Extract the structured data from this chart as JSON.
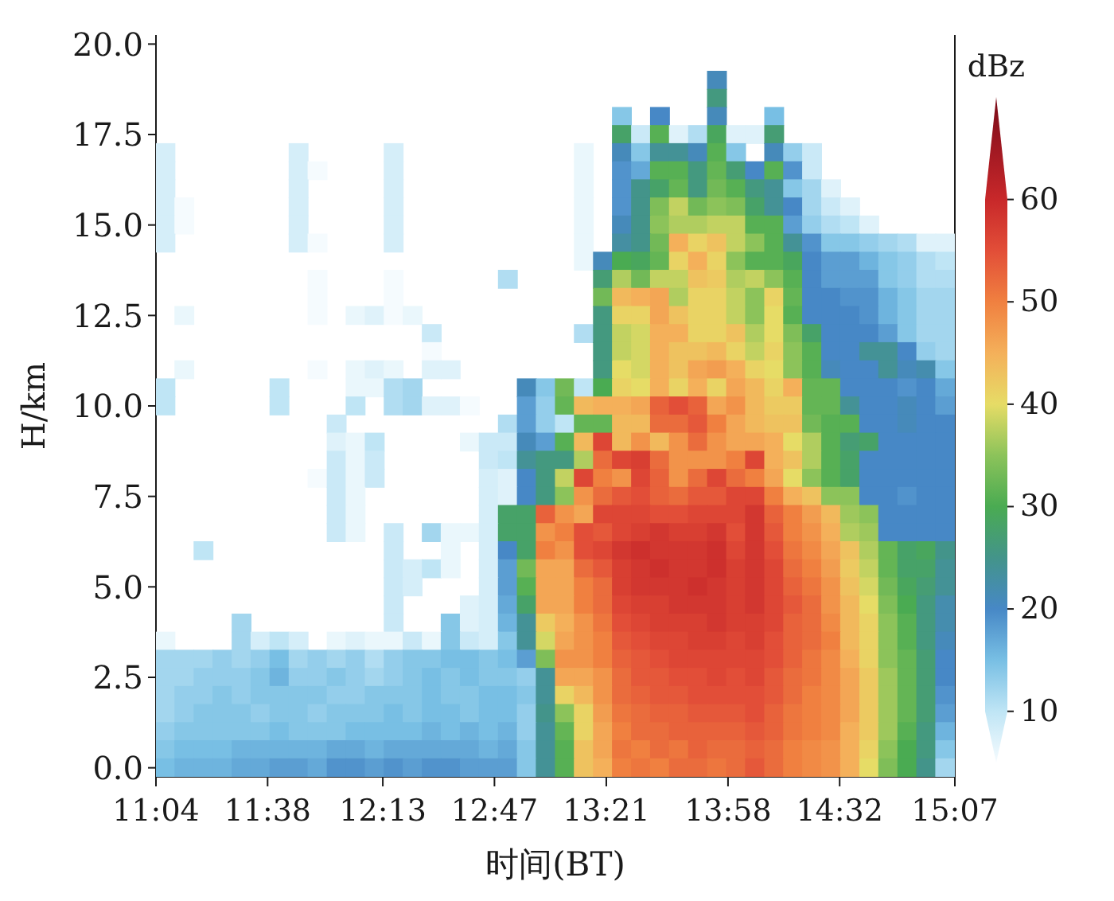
{
  "chart_data": {
    "type": "scatter",
    "marker": "square",
    "xlabel": "时间(BT)",
    "ylabel": "H/km",
    "clabel": "dBz",
    "xlim": [
      11.067,
      15.117
    ],
    "xticks": [
      {
        "value": 11.067,
        "label": "11:04"
      },
      {
        "value": 11.633,
        "label": "11:38"
      },
      {
        "value": 12.217,
        "label": "12:13"
      },
      {
        "value": 12.783,
        "label": "12:47"
      },
      {
        "value": 13.35,
        "label": "13:21"
      },
      {
        "value": 13.967,
        "label": "13:58"
      },
      {
        "value": 14.533,
        "label": "14:32"
      },
      {
        "value": 15.117,
        "label": "15:07"
      }
    ],
    "ylim": [
      -0.25,
      20.25
    ],
    "yticks": [
      {
        "value": 0,
        "label": "0.0"
      },
      2.5,
      {
        "value": 5,
        "label": "5.0"
      },
      7.5,
      {
        "value": 10,
        "label": "10.0"
      },
      12.5,
      {
        "value": 15,
        "label": "15.0"
      },
      17.5,
      {
        "value": 20,
        "label": "20.0"
      }
    ],
    "clim": [
      5,
      70
    ],
    "cticks": [
      10,
      20,
      30,
      40,
      50,
      60
    ],
    "x": [
      13.911,
      13.911,
      13.429,
      13.622,
      13.911,
      14.201,
      13.429,
      13.526,
      13.622,
      13.718,
      13.815,
      13.911,
      14.008,
      14.104,
      14.201,
      11.115,
      11.79,
      12.272,
      13.236,
      13.429,
      13.526,
      13.622,
      13.718,
      13.815,
      13.911,
      14.008,
      14.201,
      14.297,
      14.393,
      11.115,
      11.79,
      11.886,
      12.272,
      13.236,
      13.429,
      13.526,
      13.622,
      13.718,
      13.815,
      13.911,
      14.008,
      14.104,
      14.201,
      14.297,
      14.393,
      11.115,
      11.79,
      12.272,
      13.236,
      13.429,
      13.526,
      13.622,
      13.718,
      13.815,
      13.911,
      14.008,
      14.104,
      14.201,
      14.297,
      14.393,
      14.49,
      11.115,
      11.211,
      11.79,
      12.272,
      13.236,
      13.429,
      13.526,
      13.622,
      13.718,
      13.815,
      13.911,
      14.008,
      14.104,
      14.201,
      14.297,
      14.393,
      14.49,
      14.586,
      11.115,
      11.211,
      11.79,
      12.272,
      13.236,
      13.429,
      13.526,
      13.622,
      13.718,
      13.815,
      13.911,
      14.008,
      14.104,
      14.201,
      14.297,
      14.393,
      14.49,
      14.586,
      14.683,
      11.115,
      11.79,
      11.886,
      12.272,
      13.236,
      13.429,
      13.526,
      13.622,
      13.718,
      13.815,
      13.911,
      14.008,
      14.104,
      14.201,
      14.297,
      14.393,
      14.49,
      14.586,
      14.683,
      14.779,
      14.876,
      14.972,
      15.068,
      13.236,
      13.333,
      13.429,
      13.526,
      13.622,
      13.718,
      13.815,
      13.911,
      14.008,
      14.104,
      14.201,
      14.297,
      14.393,
      14.49,
      14.586,
      14.683,
      14.779,
      14.876,
      14.972,
      15.068,
      11.886,
      12.272,
      12.851,
      13.333,
      13.429,
      13.526,
      13.622,
      13.718,
      13.815,
      13.911,
      14.008,
      14.104,
      14.201,
      14.297,
      14.393,
      14.49,
      14.586,
      14.683,
      14.779,
      14.876,
      14.972,
      15.068,
      11.886,
      12.272,
      13.333,
      13.429,
      13.526,
      13.622,
      13.718,
      13.815,
      13.911,
      14.008,
      14.104,
      14.201,
      14.297,
      14.393,
      14.49,
      14.586,
      14.683,
      14.779,
      14.876,
      14.972,
      15.068,
      11.211,
      11.886,
      12.079,
      12.176,
      12.272,
      12.368,
      13.333,
      13.429,
      13.526,
      13.622,
      13.718,
      13.815,
      13.911,
      14.008,
      14.104,
      14.201,
      14.297,
      14.393,
      14.49,
      14.586,
      14.683,
      14.779,
      14.876,
      14.972,
      15.068,
      12.465,
      13.236,
      13.333,
      13.429,
      13.526,
      13.622,
      13.718,
      13.815,
      13.911,
      14.008,
      14.104,
      14.201,
      14.297,
      14.393,
      14.49,
      14.586,
      14.683,
      14.779,
      14.876,
      14.972,
      15.068,
      12.465,
      13.333,
      13.429,
      13.526,
      13.622,
      13.718,
      13.815,
      13.911,
      14.008,
      14.104,
      14.201,
      14.297,
      14.393,
      14.49,
      14.586,
      14.683,
      14.779,
      14.876,
      14.972,
      15.068,
      11.211,
      11.886,
      12.079,
      12.176,
      12.272,
      12.465,
      12.561,
      13.333,
      13.429,
      13.526,
      13.622,
      13.718,
      13.815,
      13.911,
      14.008,
      14.104,
      14.201,
      14.297,
      14.393,
      14.49,
      14.586,
      14.683,
      14.779,
      14.876,
      14.972,
      15.068,
      11.115,
      11.693,
      12.079,
      12.176,
      12.272,
      12.368,
      12.947,
      13.043,
      13.14,
      13.236,
      13.333,
      13.429,
      13.526,
      13.622,
      13.718,
      13.815,
      13.911,
      14.008,
      14.104,
      14.201,
      14.297,
      14.393,
      14.49,
      14.586,
      14.683,
      14.779,
      14.876,
      14.972,
      15.068,
      11.115,
      11.693,
      12.079,
      12.272,
      12.368,
      12.465,
      12.561,
      12.658,
      12.947,
      13.043,
      13.14,
      13.236,
      13.333,
      13.429,
      13.526,
      13.622,
      13.718,
      13.815,
      13.911,
      14.008,
      14.104,
      14.201,
      14.297,
      14.393,
      14.49,
      14.586,
      14.683,
      14.779,
      14.876,
      14.972,
      15.068,
      11.983,
      12.851,
      12.947,
      13.043,
      13.14,
      13.236,
      13.333,
      13.429,
      13.526,
      13.622,
      13.718,
      13.815,
      13.911,
      14.008,
      14.104,
      14.201,
      14.297,
      14.393,
      14.49,
      14.586,
      14.683,
      14.779,
      14.876,
      14.972,
      15.068,
      11.983,
      12.079,
      12.176,
      12.658,
      12.754,
      12.851,
      12.947,
      13.043,
      13.14,
      13.236,
      13.333,
      13.429,
      13.526,
      13.622,
      13.718,
      13.815,
      13.911,
      14.008,
      14.104,
      14.201,
      14.297,
      14.393,
      14.49,
      14.586,
      14.683,
      14.779,
      14.876,
      14.972,
      15.068,
      11.983,
      12.079,
      12.176,
      12.754,
      12.851,
      12.947,
      13.043,
      13.14,
      13.236,
      13.333,
      13.429,
      13.526,
      13.622,
      13.718,
      13.815,
      13.911,
      14.008,
      14.104,
      14.201,
      14.297,
      14.393,
      14.49,
      14.586,
      14.683,
      14.779,
      14.876,
      14.972,
      15.068,
      11.886,
      11.983,
      12.079,
      12.176,
      12.754,
      12.851,
      12.947,
      13.043,
      13.14,
      13.236,
      13.333,
      13.429,
      13.526,
      13.622,
      13.718,
      13.815,
      13.911,
      14.008,
      14.104,
      14.201,
      14.297,
      14.393,
      14.49,
      14.586,
      14.683,
      14.779,
      14.876,
      14.972,
      15.068,
      11.983,
      12.079,
      12.754,
      12.851,
      12.947,
      13.043,
      13.14,
      13.236,
      13.333,
      13.429,
      13.526,
      13.622,
      13.718,
      13.815,
      13.911,
      14.008,
      14.104,
      14.201,
      14.297,
      14.393,
      14.49,
      14.586,
      14.683,
      14.779,
      14.876,
      14.972,
      15.068,
      11.983,
      12.079,
      12.754,
      12.851,
      12.947,
      13.043,
      13.14,
      13.236,
      13.333,
      13.429,
      13.526,
      13.622,
      13.718,
      13.815,
      13.911,
      14.008,
      14.104,
      14.201,
      14.297,
      14.393,
      14.49,
      14.586,
      14.683,
      14.779,
      14.876,
      14.972,
      15.068,
      11.983,
      12.079,
      12.272,
      12.465,
      12.561,
      12.658,
      12.754,
      12.851,
      12.947,
      13.043,
      13.14,
      13.236,
      13.333,
      13.429,
      13.526,
      13.622,
      13.718,
      13.815,
      13.911,
      14.008,
      14.104,
      14.201,
      14.297,
      14.393,
      14.49,
      14.586,
      14.683,
      14.779,
      14.876,
      14.972,
      15.068,
      11.308,
      12.272,
      12.561,
      12.754,
      12.851,
      12.947,
      13.043,
      13.14,
      13.236,
      13.333,
      13.429,
      13.526,
      13.622,
      13.718,
      13.815,
      13.911,
      14.008,
      14.104,
      14.201,
      14.297,
      14.393,
      14.49,
      14.586,
      14.683,
      14.779,
      14.876,
      14.972,
      15.068,
      12.272,
      12.368,
      12.465,
      12.561,
      12.754,
      12.851,
      12.947,
      13.043,
      13.14,
      13.236,
      13.333,
      13.429,
      13.526,
      13.622,
      13.718,
      13.815,
      13.911,
      14.008,
      14.104,
      14.201,
      14.297,
      14.393,
      14.49,
      14.586,
      14.683,
      14.779,
      14.876,
      14.972,
      15.068,
      12.272,
      12.368,
      12.754,
      12.851,
      12.947,
      13.043,
      13.14,
      13.236,
      13.333,
      13.429,
      13.526,
      13.622,
      13.718,
      13.815,
      13.911,
      14.008,
      14.104,
      14.201,
      14.297,
      14.393,
      14.49,
      14.586,
      14.683,
      14.779,
      14.876,
      14.972,
      15.068,
      12.272,
      12.658,
      12.754,
      12.851,
      12.947,
      13.043,
      13.14,
      13.236,
      13.333,
      13.429,
      13.526,
      13.622,
      13.718,
      13.815,
      13.911,
      14.008,
      14.104,
      14.201,
      14.297,
      14.393,
      14.49,
      14.586,
      14.683,
      14.779,
      14.876,
      14.972,
      15.068,
      11.501,
      12.272,
      12.561,
      12.658,
      12.754,
      12.851,
      12.947,
      13.043,
      13.14,
      13.236,
      13.333,
      13.429,
      13.526,
      13.622,
      13.718,
      13.815,
      13.911,
      14.008,
      14.104,
      14.201,
      14.297,
      14.393,
      14.49,
      14.586,
      14.683,
      14.779,
      14.876,
      14.972,
      15.068,
      11.115,
      11.501,
      11.597,
      11.693,
      11.79,
      11.983,
      12.079,
      12.176,
      12.272,
      12.368,
      12.465,
      12.561,
      12.658,
      12.754,
      12.851,
      12.947,
      13.043,
      13.14,
      13.236,
      13.333,
      13.429,
      13.526,
      13.622,
      13.718,
      13.815,
      13.911,
      14.008,
      14.104,
      14.201,
      14.297,
      14.393,
      14.49,
      14.586,
      14.683,
      14.779,
      14.876,
      14.972,
      15.068,
      11.115,
      11.211,
      11.308,
      11.404,
      11.501,
      11.597,
      11.693,
      11.79,
      11.886,
      11.983,
      12.079,
      12.176,
      12.272,
      12.368,
      12.465,
      12.561,
      12.658,
      12.754,
      12.851,
      12.947,
      13.043,
      13.14,
      13.236,
      13.333,
      13.429,
      13.526,
      13.622,
      13.718,
      13.815,
      13.911,
      14.008,
      14.104,
      14.201,
      14.297,
      14.393,
      14.49,
      14.586,
      14.683,
      14.779,
      14.876,
      14.972,
      15.068,
      11.115,
      11.211,
      11.308,
      11.404,
      11.501,
      11.597,
      11.693,
      11.79,
      11.886,
      11.983,
      12.079,
      12.176,
      12.272,
      12.368,
      12.465,
      12.561,
      12.658,
      12.754,
      12.851,
      12.947,
      13.043,
      13.14,
      13.236,
      13.333,
      13.429,
      13.526,
      13.622,
      13.718,
      13.815,
      13.911,
      14.008,
      14.104,
      14.201,
      14.297,
      14.393,
      14.49,
      14.586,
      14.683,
      14.779,
      14.876,
      14.972,
      15.068,
      11.115,
      11.211,
      11.308,
      11.404,
      11.501,
      11.597,
      11.693,
      11.79,
      11.886,
      11.983,
      12.079,
      12.176,
      12.272,
      12.368,
      12.465,
      12.561,
      12.658,
      12.754,
      12.851,
      12.947,
      13.043,
      13.14,
      13.236,
      13.333,
      13.429,
      13.526,
      13.622,
      13.718,
      13.815,
      13.911,
      14.008,
      14.104,
      14.201,
      14.297,
      14.393,
      14.49,
      14.586,
      14.683,
      14.779,
      14.876,
      14.972,
      15.068,
      11.115,
      11.211,
      11.308,
      11.404,
      11.501,
      11.597,
      11.693,
      11.79,
      11.886,
      11.983,
      12.079,
      12.176,
      12.272,
      12.368,
      12.465,
      12.561,
      12.658,
      12.754,
      12.851,
      12.947,
      13.043,
      13.14,
      13.236,
      13.333,
      13.429,
      13.526,
      13.622,
      13.718,
      13.815,
      13.911,
      14.008,
      14.104,
      14.201,
      14.297,
      14.393,
      14.49,
      14.586,
      14.683,
      14.779,
      14.876,
      14.972,
      15.068,
      11.115,
      11.211,
      11.308,
      11.404,
      11.501,
      11.597,
      11.693,
      11.79,
      11.886,
      11.983,
      12.079,
      12.176,
      12.272,
      12.368,
      12.465,
      12.561,
      12.658,
      12.754,
      12.851,
      12.947,
      13.043,
      13.14,
      13.236,
      13.333,
      13.429,
      13.526,
      13.622,
      13.718,
      13.815,
      13.911,
      14.008,
      14.104,
      14.201,
      14.297,
      14.393,
      14.49,
      14.586,
      14.683,
      14.779,
      14.876,
      14.972,
      15.068,
      11.115,
      11.211,
      11.308,
      11.404,
      11.501,
      11.597,
      11.693,
      11.79,
      11.886,
      11.983,
      12.079,
      12.176,
      12.272,
      12.368,
      12.465,
      12.561,
      12.658,
      12.754,
      12.851,
      12.947,
      13.043,
      13.14,
      13.236,
      13.333,
      13.429,
      13.526,
      13.622,
      13.718,
      13.815,
      13.911,
      14.008,
      14.104,
      14.201,
      14.297,
      14.393,
      14.49,
      14.586,
      14.683,
      14.779,
      14.876,
      14.972,
      15.068,
      11.115,
      11.211,
      11.308,
      11.404,
      11.501,
      11.597,
      11.693,
      11.79,
      11.886,
      11.983,
      12.079,
      12.176,
      12.272,
      12.368,
      12.465,
      12.561,
      12.658,
      12.754,
      12.851,
      12.947,
      13.043,
      13.14,
      13.236,
      13.333,
      13.429,
      13.526,
      13.622,
      13.718,
      13.815,
      13.911,
      14.008,
      14.104,
      14.201,
      14.297,
      14.393,
      14.49,
      14.586,
      14.683,
      14.779,
      14.876,
      14.972,
      15.068
    ],
    "values": [
      19,
      18.5,
      18,
      18,
      18,
      18,
      17.5,
      17.5,
      17.5,
      17.5,
      17.5,
      17.5,
      17.5,
      17.5,
      17.5,
      17,
      17,
      17,
      17,
      17,
      17,
      17,
      17,
      17,
      17,
      17,
      17,
      17,
      17,
      16.5,
      16.5,
      16.5,
      16.5,
      16.5,
      16.5,
      16.5,
      16.5,
      16.5,
      16.5,
      16.5,
      16.5,
      16.5,
      16.5,
      16.5,
      16.5,
      16,
      16,
      16,
      16,
      16,
      16,
      16,
      16,
      16,
      16,
      16,
      16,
      16,
      16,
      16,
      16,
      15.5,
      15.5,
      15.5,
      15.5,
      15.5,
      15.5,
      15.5,
      15.5,
      15.5,
      15.5,
      15.5,
      15.5,
      15.5,
      15.5,
      15.5,
      15.5,
      15.5,
      15.5,
      15,
      15,
      15,
      15,
      15,
      15,
      15,
      15,
      15,
      15,
      15,
      15,
      15,
      15,
      15,
      15,
      15,
      15,
      15,
      14.5,
      14.5,
      14.5,
      14.5,
      14.5,
      14.5,
      14.5,
      14.5,
      14.5,
      14.5,
      14.5,
      14.5,
      14.5,
      14.5,
      14.5,
      14.5,
      14.5,
      14.5,
      14.5,
      14.5,
      14.5,
      14.5,
      14.5,
      14,
      14,
      14,
      14,
      14,
      14,
      14,
      14,
      14,
      14,
      14,
      14,
      14,
      14,
      14,
      14,
      14,
      14,
      14,
      14,
      13.5,
      13.5,
      13.5,
      13.5,
      13.5,
      13.5,
      13.5,
      13.5,
      13.5,
      13.5,
      13.5,
      13.5,
      13.5,
      13.5,
      13.5,
      13.5,
      13.5,
      13.5,
      13.5,
      13.5,
      13.5,
      13.5,
      13,
      13,
      13,
      13,
      13,
      13,
      13,
      13,
      13,
      13,
      13,
      13,
      13,
      13,
      13,
      13,
      13,
      13,
      13,
      13,
      13,
      12.5,
      12.5,
      12.5,
      12.5,
      12.5,
      12.5,
      12.5,
      12.5,
      12.5,
      12.5,
      12.5,
      12.5,
      12.5,
      12.5,
      12.5,
      12.5,
      12.5,
      12.5,
      12.5,
      12.5,
      12.5,
      12.5,
      12.5,
      12.5,
      12.5,
      12,
      12,
      12,
      12,
      12,
      12,
      12,
      12,
      12,
      12,
      12,
      12,
      12,
      12,
      12,
      12,
      12,
      12,
      12,
      12,
      12,
      11.5,
      11.5,
      11.5,
      11.5,
      11.5,
      11.5,
      11.5,
      11.5,
      11.5,
      11.5,
      11.5,
      11.5,
      11.5,
      11.5,
      11.5,
      11.5,
      11.5,
      11.5,
      11.5,
      11.5,
      11,
      11,
      11,
      11,
      11,
      11,
      11,
      11,
      11,
      11,
      11,
      11,
      11,
      11,
      11,
      11,
      11,
      11,
      11,
      11,
      11,
      11,
      11,
      11,
      11,
      11,
      10.5,
      10.5,
      10.5,
      10.5,
      10.5,
      10.5,
      10.5,
      10.5,
      10.5,
      10.5,
      10.5,
      10.5,
      10.5,
      10.5,
      10.5,
      10.5,
      10.5,
      10.5,
      10.5,
      10.5,
      10.5,
      10.5,
      10.5,
      10.5,
      10.5,
      10.5,
      10.5,
      10.5,
      10.5,
      10,
      10,
      10,
      10,
      10,
      10,
      10,
      10,
      10,
      10,
      10,
      10,
      10,
      10,
      10,
      10,
      10,
      10,
      10,
      10,
      10,
      10,
      10,
      10,
      10,
      10,
      10,
      10,
      10,
      10,
      10,
      9.5,
      9.5,
      9.5,
      9.5,
      9.5,
      9.5,
      9.5,
      9.5,
      9.5,
      9.5,
      9.5,
      9.5,
      9.5,
      9.5,
      9.5,
      9.5,
      9.5,
      9.5,
      9.5,
      9.5,
      9.5,
      9.5,
      9.5,
      9.5,
      9.5,
      9,
      9,
      9,
      9,
      9,
      9,
      9,
      9,
      9,
      9,
      9,
      9,
      9,
      9,
      9,
      9,
      9,
      9,
      9,
      9,
      9,
      9,
      9,
      9,
      9,
      9,
      9,
      9,
      9,
      8.5,
      8.5,
      8.5,
      8.5,
      8.5,
      8.5,
      8.5,
      8.5,
      8.5,
      8.5,
      8.5,
      8.5,
      8.5,
      8.5,
      8.5,
      8.5,
      8.5,
      8.5,
      8.5,
      8.5,
      8.5,
      8.5,
      8.5,
      8.5,
      8.5,
      8.5,
      8.5,
      8.5,
      8,
      8,
      8,
      8,
      8,
      8,
      8,
      8,
      8,
      8,
      8,
      8,
      8,
      8,
      8,
      8,
      8,
      8,
      8,
      8,
      8,
      8,
      8,
      8,
      8,
      8,
      8,
      8,
      8,
      7.5,
      7.5,
      7.5,
      7.5,
      7.5,
      7.5,
      7.5,
      7.5,
      7.5,
      7.5,
      7.5,
      7.5,
      7.5,
      7.5,
      7.5,
      7.5,
      7.5,
      7.5,
      7.5,
      7.5,
      7.5,
      7.5,
      7.5,
      7.5,
      7.5,
      7.5,
      7.5,
      7,
      7,
      7,
      7,
      7,
      7,
      7,
      7,
      7,
      7,
      7,
      7,
      7,
      7,
      7,
      7,
      7,
      7,
      7,
      7,
      7,
      7,
      7,
      7,
      7,
      7,
      7,
      6.5,
      6.5,
      6.5,
      6.5,
      6.5,
      6.5,
      6.5,
      6.5,
      6.5,
      6.5,
      6.5,
      6.5,
      6.5,
      6.5,
      6.5,
      6.5,
      6.5,
      6.5,
      6.5,
      6.5,
      6.5,
      6.5,
      6.5,
      6.5,
      6.5,
      6.5,
      6.5,
      6.5,
      6.5,
      6.5,
      6.5,
      6,
      6,
      6,
      6,
      6,
      6,
      6,
      6,
      6,
      6,
      6,
      6,
      6,
      6,
      6,
      6,
      6,
      6,
      6,
      6,
      6,
      6,
      6,
      6,
      6,
      6,
      6,
      6,
      5.5,
      5.5,
      5.5,
      5.5,
      5.5,
      5.5,
      5.5,
      5.5,
      5.5,
      5.5,
      5.5,
      5.5,
      5.5,
      5.5,
      5.5,
      5.5,
      5.5,
      5.5,
      5.5,
      5.5,
      5.5,
      5.5,
      5.5,
      5.5,
      5.5,
      5.5,
      5.5,
      5.5,
      5.5,
      5,
      5,
      5,
      5,
      5,
      5,
      5,
      5,
      5,
      5,
      5,
      5,
      5,
      5,
      5,
      5,
      5,
      5,
      5,
      5,
      5,
      5,
      5,
      5,
      5,
      5,
      5,
      4.5,
      4.5,
      4.5,
      4.5,
      4.5,
      4.5,
      4.5,
      4.5,
      4.5,
      4.5,
      4.5,
      4.5,
      4.5,
      4.5,
      4.5,
      4.5,
      4.5,
      4.5,
      4.5,
      4.5,
      4.5,
      4.5,
      4.5,
      4.5,
      4.5,
      4.5,
      4.5,
      4,
      4,
      4,
      4,
      4,
      4,
      4,
      4,
      4,
      4,
      4,
      4,
      4,
      4,
      4,
      4,
      4,
      4,
      4,
      4,
      4,
      4,
      4,
      4,
      4,
      4,
      4,
      4,
      4,
      3.5,
      3.5,
      3.5,
      3.5,
      3.5,
      3.5,
      3.5,
      3.5,
      3.5,
      3.5,
      3.5,
      3.5,
      3.5,
      3.5,
      3.5,
      3.5,
      3.5,
      3.5,
      3.5,
      3.5,
      3.5,
      3.5,
      3.5,
      3.5,
      3.5,
      3.5,
      3.5,
      3.5,
      3.5,
      3.5,
      3.5,
      3.5,
      3.5,
      3.5,
      3.5,
      3.5,
      3.5,
      3.5,
      3,
      3,
      3,
      3,
      3,
      3,
      3,
      3,
      3,
      3,
      3,
      3,
      3,
      3,
      3,
      3,
      3,
      3,
      3,
      3,
      3,
      3,
      3,
      3,
      3,
      3,
      3,
      3,
      3,
      3,
      3,
      3,
      3,
      3,
      3,
      3,
      3,
      3,
      3,
      3,
      3,
      3,
      2.5,
      2.5,
      2.5,
      2.5,
      2.5,
      2.5,
      2.5,
      2.5,
      2.5,
      2.5,
      2.5,
      2.5,
      2.5,
      2.5,
      2.5,
      2.5,
      2.5,
      2.5,
      2.5,
      2.5,
      2.5,
      2.5,
      2.5,
      2.5,
      2.5,
      2.5,
      2.5,
      2.5,
      2.5,
      2.5,
      2.5,
      2.5,
      2.5,
      2.5,
      2.5,
      2.5,
      2.5,
      2.5,
      2.5,
      2.5,
      2.5,
      2.5,
      2,
      2,
      2,
      2,
      2,
      2,
      2,
      2,
      2,
      2,
      2,
      2,
      2,
      2,
      2,
      2,
      2,
      2,
      2,
      2,
      2,
      2,
      2,
      2,
      2,
      2,
      2,
      2,
      2,
      2,
      2,
      2,
      2,
      2,
      2,
      2,
      2,
      2,
      2,
      2,
      2,
      2,
      1.5,
      1.5,
      1.5,
      1.5,
      1.5,
      1.5,
      1.5,
      1.5,
      1.5,
      1.5,
      1.5,
      1.5,
      1.5,
      1.5,
      1.5,
      1.5,
      1.5,
      1.5,
      1.5,
      1.5,
      1.5,
      1.5,
      1.5,
      1.5,
      1.5,
      1.5,
      1.5,
      1.5,
      1.5,
      1.5,
      1.5,
      1.5,
      1.5,
      1.5,
      1.5,
      1.5,
      1.5,
      1.5,
      1.5,
      1.5,
      1.5,
      1.5,
      1,
      1,
      1,
      1,
      1,
      1,
      1,
      1,
      1,
      1,
      1,
      1,
      1,
      1,
      1,
      1,
      1,
      1,
      1,
      1,
      1,
      1,
      1,
      1,
      1,
      1,
      1,
      1,
      1,
      1,
      1,
      1,
      1,
      1,
      1,
      1,
      1,
      1,
      1,
      1,
      1,
      1,
      0.5,
      0.5,
      0.5,
      0.5,
      0.5,
      0.5,
      0.5,
      0.5,
      0.5,
      0.5,
      0.5,
      0.5,
      0.5,
      0.5,
      0.5,
      0.5,
      0.5,
      0.5,
      0.5,
      0.5,
      0.5,
      0.5,
      0.5,
      0.5,
      0.5,
      0.5,
      0.5,
      0.5,
      0.5,
      0.5,
      0.5,
      0.5,
      0.5,
      0.5,
      0.5,
      0.5,
      0.5,
      0.5,
      0.5,
      0.5,
      0.5,
      0.5,
      0,
      0,
      0,
      0,
      0,
      0,
      0,
      0,
      0,
      0,
      0,
      0,
      0,
      0,
      0,
      0,
      0,
      0,
      0,
      0,
      0,
      0,
      0,
      0,
      0,
      0,
      0,
      0,
      0,
      0,
      0,
      0,
      0,
      0,
      0,
      0,
      0,
      0,
      0,
      0,
      0,
      0
    ],
    "cvalues": [
      21,
      26,
      14,
      20,
      21,
      15,
      28,
      9,
      31,
      7,
      11,
      29,
      7,
      7,
      27,
      8,
      8,
      8,
      6,
      21,
      14,
      24,
      24,
      21,
      31,
      14,
      21,
      13,
      9,
      8,
      8,
      5,
      8,
      6,
      19,
      17,
      31,
      31,
      26,
      32,
      27,
      20,
      31,
      19,
      9,
      8,
      8,
      8,
      6,
      19,
      25,
      28,
      32,
      26,
      33,
      31,
      26,
      24,
      14,
      12,
      7,
      8,
      5,
      8,
      8,
      6,
      19,
      25,
      34,
      38,
      33,
      35,
      34,
      28,
      24,
      20,
      12,
      9,
      7,
      8,
      5,
      8,
      8,
      6,
      21,
      25,
      35,
      37,
      37,
      38,
      38,
      31,
      31,
      18,
      13,
      11,
      10,
      7,
      8,
      8,
      5,
      8,
      6,
      23,
      25,
      33,
      45,
      41,
      43,
      38,
      35,
      31,
      24,
      19,
      14,
      14,
      13,
      12,
      11,
      7,
      7,
      6,
      21,
      30,
      29,
      32,
      41,
      45,
      41,
      35,
      31,
      31,
      29,
      20,
      18,
      18,
      16,
      14,
      13,
      11,
      10,
      5,
      5,
      11,
      27,
      37,
      33,
      38,
      38,
      43,
      42,
      37,
      38,
      35,
      31,
      20,
      18,
      18,
      18,
      14,
      13,
      11,
      11,
      5,
      5,
      33,
      44,
      45,
      46,
      37,
      41,
      41,
      38,
      35,
      41,
      32,
      20,
      20,
      19,
      19,
      16,
      14,
      12,
      12,
      6,
      5,
      6,
      7,
      5,
      6,
      26,
      41,
      41,
      46,
      43,
      41,
      41,
      38,
      35,
      40,
      31,
      20,
      20,
      20,
      19,
      16,
      14,
      12,
      12,
      9,
      11,
      26,
      38,
      39,
      45,
      45,
      41,
      41,
      43,
      37,
      40,
      34,
      28,
      20,
      20,
      20,
      18,
      14,
      12,
      12,
      5,
      26,
      38,
      39,
      45,
      43,
      43,
      44,
      41,
      38,
      41,
      35,
      31,
      20,
      20,
      24,
      24,
      20,
      13,
      12,
      6,
      5,
      6,
      7,
      6,
      7,
      7,
      26,
      40,
      39,
      45,
      43,
      46,
      47,
      45,
      41,
      40,
      35,
      31,
      21,
      20,
      20,
      24,
      21,
      22,
      14,
      10,
      10,
      6,
      6,
      11,
      12,
      21,
      14,
      33,
      10,
      30,
      41,
      40,
      45,
      41,
      45,
      41,
      46,
      44,
      41,
      45,
      32,
      32,
      20,
      20,
      20,
      19,
      20,
      17,
      10,
      10,
      10,
      11,
      12,
      7,
      7,
      5,
      18,
      13,
      32,
      44,
      45,
      45,
      46,
      53,
      55,
      53,
      46,
      48,
      44,
      42,
      42,
      32,
      32,
      24,
      20,
      20,
      21,
      20,
      18,
      9,
      11,
      18,
      13,
      10,
      32,
      32,
      44,
      44,
      52,
      52,
      54,
      50,
      46,
      44,
      43,
      43,
      33,
      31,
      31,
      20,
      20,
      21,
      20,
      20,
      7,
      6,
      10,
      6,
      9,
      9,
      21,
      18,
      31,
      44,
      56,
      44,
      48,
      44,
      48,
      52,
      48,
      46,
      46,
      45,
      40,
      37,
      31,
      27,
      28,
      20,
      20,
      20,
      20,
      9,
      6,
      9,
      9,
      10,
      24,
      26,
      26,
      37,
      52,
      56,
      57,
      52,
      48,
      48,
      48,
      50,
      56,
      45,
      43,
      37,
      31,
      28,
      20,
      20,
      20,
      20,
      20,
      5,
      9,
      6,
      9,
      8,
      7,
      20,
      26,
      38,
      56,
      50,
      48,
      56,
      53,
      48,
      52,
      56,
      52,
      50,
      46,
      40,
      35,
      31,
      28,
      20,
      20,
      20,
      20,
      20,
      9,
      6,
      8,
      7,
      20,
      26,
      35,
      48,
      52,
      54,
      55,
      53,
      52,
      54,
      54,
      56,
      56,
      50,
      45,
      43,
      35,
      35,
      20,
      20,
      19,
      20,
      20,
      9,
      6,
      8,
      28,
      28,
      53,
      48,
      46,
      56,
      56,
      56,
      55,
      55,
      56,
      56,
      56,
      58,
      53,
      50,
      47,
      44,
      36,
      35,
      20,
      20,
      20,
      20,
      9,
      6,
      9,
      12,
      6,
      6,
      8,
      28,
      28,
      48,
      50,
      55,
      54,
      56,
      57,
      58,
      57,
      57,
      58,
      55,
      58,
      54,
      50,
      48,
      45,
      37,
      36,
      20,
      20,
      20,
      20,
      10,
      9,
      6,
      8,
      20,
      28,
      50,
      48,
      55,
      56,
      58,
      59,
      58,
      58,
      58,
      59,
      56,
      58,
      55,
      51,
      49,
      46,
      43,
      37,
      32,
      28,
      29,
      25,
      9,
      8,
      10,
      6,
      8,
      18,
      33,
      46,
      46,
      52,
      54,
      57,
      58,
      59,
      58,
      58,
      59,
      57,
      58,
      56,
      52,
      50,
      47,
      42,
      38,
      32,
      28,
      28,
      24,
      9,
      8,
      8,
      18,
      31,
      46,
      46,
      50,
      52,
      57,
      58,
      58,
      58,
      59,
      58,
      57,
      58,
      56,
      53,
      51,
      48,
      43,
      39,
      33,
      29,
      27,
      24,
      9,
      7,
      8,
      17,
      28,
      46,
      46,
      50,
      52,
      56,
      57,
      57,
      58,
      58,
      58,
      57,
      58,
      56,
      54,
      52,
      48,
      44,
      40,
      34,
      30,
      26,
      22,
      12,
      9,
      14,
      7,
      8,
      16,
      24,
      42,
      45,
      48,
      51,
      55,
      56,
      57,
      57,
      57,
      58,
      57,
      57,
      56,
      53,
      52,
      49,
      44,
      41,
      35,
      31,
      26,
      22,
      6,
      12,
      8,
      10,
      8,
      6,
      7,
      6,
      6,
      9,
      6,
      14,
      9,
      8,
      14,
      24,
      39,
      46,
      48,
      50,
      54,
      55,
      56,
      56,
      57,
      57,
      56,
      57,
      55,
      53,
      52,
      50,
      44,
      41,
      35,
      31,
      26,
      21,
      12,
      12,
      12,
      13,
      12,
      13,
      15,
      12,
      13,
      12,
      13,
      11,
      13,
      14,
      14,
      15,
      15,
      14,
      15,
      18,
      34,
      48,
      48,
      50,
      53,
      54,
      55,
      56,
      56,
      56,
      56,
      56,
      55,
      53,
      51,
      49,
      45,
      41,
      35,
      32,
      27,
      20,
      12,
      12,
      13,
      13,
      13,
      14,
      16,
      13,
      13,
      14,
      13,
      12,
      13,
      14,
      15,
      14,
      15,
      14,
      14,
      13,
      24,
      46,
      46,
      48,
      52,
      54,
      54,
      55,
      55,
      56,
      55,
      56,
      54,
      52,
      51,
      49,
      46,
      42,
      36,
      32,
      27,
      20,
      12,
      13,
      13,
      14,
      13,
      14,
      14,
      14,
      14,
      13,
      13,
      14,
      14,
      14,
      15,
      14,
      14,
      15,
      15,
      14,
      24,
      41,
      44,
      48,
      52,
      53,
      54,
      54,
      55,
      55,
      55,
      55,
      54,
      52,
      50,
      49,
      46,
      42,
      36,
      32,
      27,
      19,
      12,
      13,
      14,
      14,
      14,
      13,
      14,
      14,
      13,
      14,
      14,
      14,
      15,
      14,
      15,
      15,
      14,
      15,
      15,
      13,
      25,
      35,
      41,
      47,
      51,
      52,
      53,
      53,
      54,
      54,
      54,
      55,
      53,
      51,
      50,
      49,
      46,
      42,
      36,
      32,
      27,
      18,
      13,
      14,
      14,
      14,
      14,
      14,
      15,
      14,
      14,
      14,
      15,
      15,
      15,
      15,
      16,
      15,
      16,
      15,
      16,
      13,
      24,
      32,
      41,
      46,
      50,
      52,
      52,
      53,
      53,
      53,
      53,
      54,
      53,
      51,
      50,
      49,
      45,
      42,
      36,
      31,
      26,
      16,
      14,
      15,
      15,
      15,
      16,
      16,
      16,
      16,
      16,
      17,
      17,
      16,
      17,
      17,
      17,
      17,
      17,
      16,
      17,
      14,
      24,
      31,
      43,
      46,
      51,
      50,
      52,
      51,
      53,
      52,
      52,
      53,
      52,
      50,
      49,
      48,
      45,
      41,
      35,
      30,
      26,
      14,
      15,
      16,
      16,
      16,
      17,
      17,
      18,
      18,
      17,
      19,
      19,
      18,
      19,
      18,
      19,
      19,
      18,
      18,
      18,
      14,
      24,
      31,
      43,
      45,
      50,
      51,
      50,
      52,
      52,
      51,
      52,
      54,
      52,
      50,
      49,
      48,
      45,
      40,
      34,
      30,
      25,
      12
    ]
  }
}
